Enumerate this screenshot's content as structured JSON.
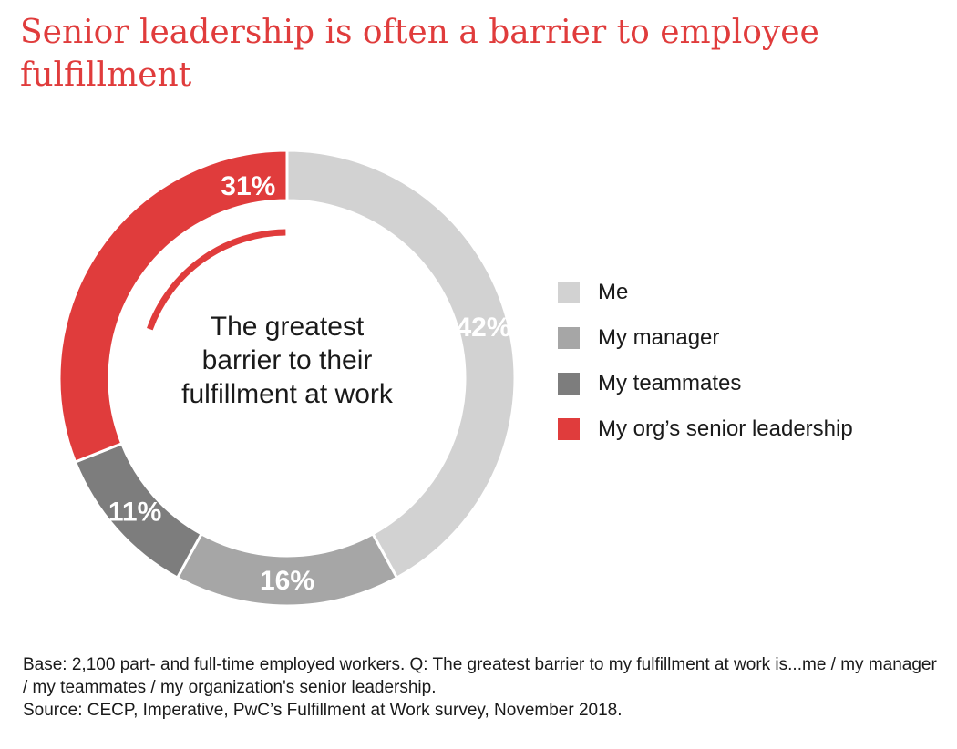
{
  "title": "Senior leadership is often a barrier to employee fulfillment",
  "center_label": "The greatest barrier to their fulfillment at work",
  "footnote": {
    "base": "Base: 2,100 part- and full-time employed workers. Q: The greatest barrier to my fulfillment at work is...me / my manager / my teammates / my organization's senior leadership.",
    "source": "Source: CECP, Imperative, PwC’s Fulfillment at Work survey, November 2018."
  },
  "chart_data": {
    "type": "pie",
    "style": "donut",
    "title": "Senior leadership is often a barrier to employee fulfillment",
    "center_label": "The greatest barrier to their fulfillment at work",
    "legend_position": "right",
    "slices": [
      {
        "label": "Me",
        "value": 42,
        "display": "42%",
        "color": "#d2d2d2"
      },
      {
        "label": "My manager",
        "value": 16,
        "display": "16%",
        "color": "#a6a6a6"
      },
      {
        "label": "My teammates",
        "value": 11,
        "display": "11%",
        "color": "#7d7d7d"
      },
      {
        "label": "My org’s senior leadership",
        "value": 31,
        "display": "31%",
        "color": "#e03c3c"
      }
    ]
  }
}
